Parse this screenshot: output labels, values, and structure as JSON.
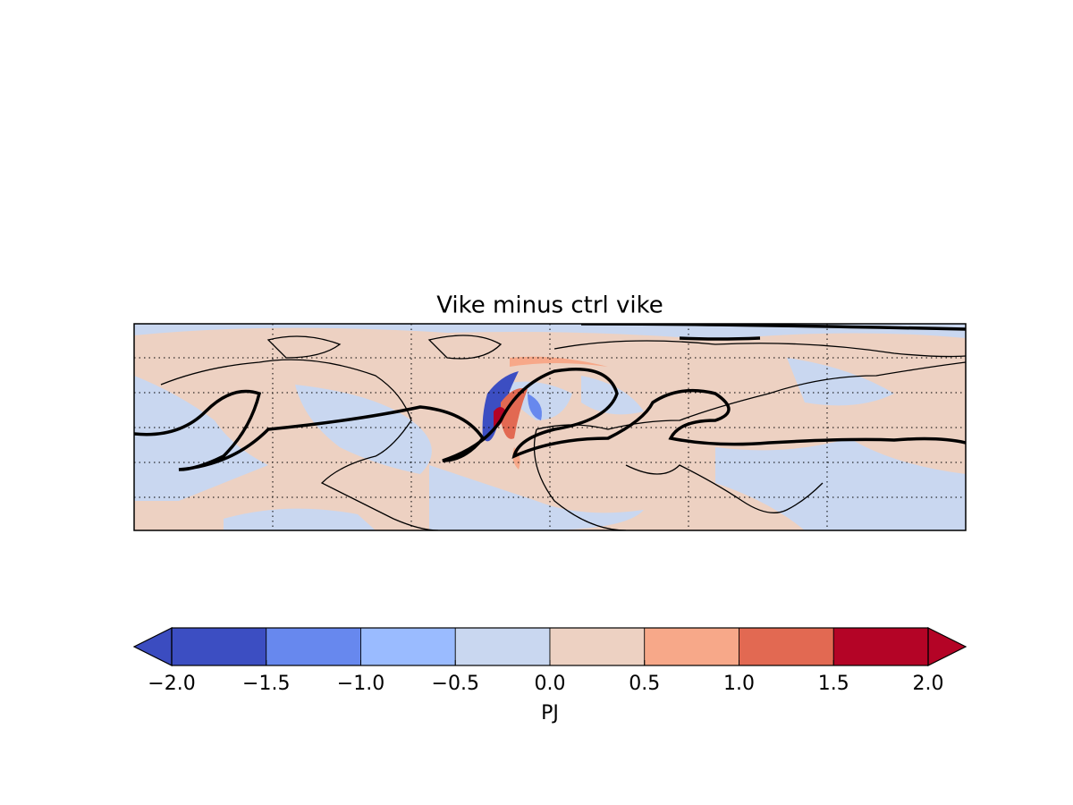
{
  "chart_data": {
    "type": "map",
    "title": "Vike minus ctrl vike",
    "colorbar": {
      "label": "PJ",
      "ticks": [
        {
          "value": -2,
          "label": "−2.0"
        },
        {
          "value": -1.5,
          "label": "−1.5"
        },
        {
          "value": -1,
          "label": "−1.0"
        },
        {
          "value": -0.5,
          "label": "−0.5"
        },
        {
          "value": 0,
          "label": "0.0"
        },
        {
          "value": 0.5,
          "label": "0.5"
        },
        {
          "value": 1,
          "label": "1.0"
        },
        {
          "value": 1.5,
          "label": "1.5"
        },
        {
          "value": 2,
          "label": "2.0"
        }
      ],
      "colors": [
        "#3c4ec2",
        "#6788ee",
        "#9abbff",
        "#c9d7f0",
        "#edd1c2",
        "#f7a889",
        "#e26952",
        "#b40426"
      ],
      "extend": "both",
      "under_color": "#3b4cc0",
      "over_color": "#b40426"
    },
    "grid": true
  }
}
